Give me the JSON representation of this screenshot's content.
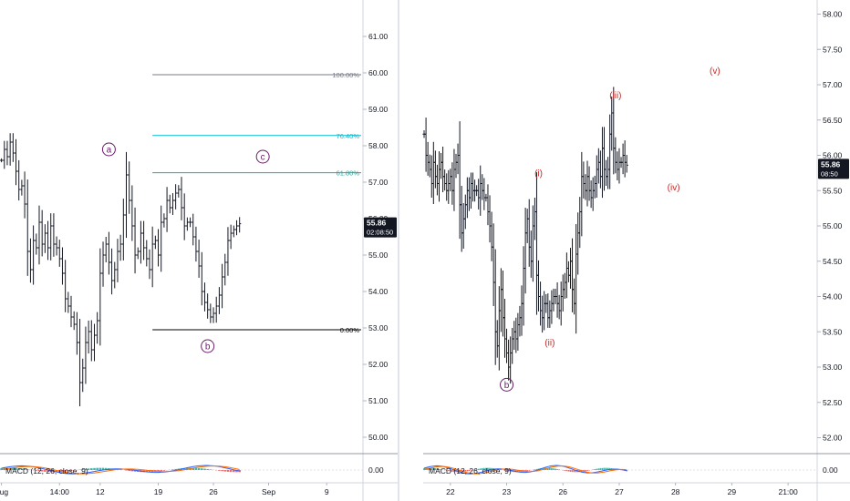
{
  "chart_data": [
    {
      "type": "ohlc",
      "ylim": [
        49.6,
        62.0
      ],
      "y_ticks": [
        50,
        51,
        52,
        53,
        54,
        55,
        56,
        57,
        58,
        59,
        60,
        61
      ],
      "y_tick_labels": [
        "50.00",
        "51.00",
        "52.00",
        "53.00",
        "54.00",
        "55.00",
        "56.00",
        "57.00",
        "58.00",
        "59.00",
        "60.00",
        "61.00"
      ],
      "x_ticks": [
        {
          "label": "Aug",
          "bar": 0
        },
        {
          "label": "14:00",
          "bar": 20
        },
        {
          "label": "12",
          "bar": 34
        },
        {
          "label": "19",
          "bar": 54
        },
        {
          "label": "26",
          "bar": 73
        },
        {
          "label": "Sep",
          "bar": 92
        },
        {
          "label": "9",
          "bar": 112
        }
      ],
      "bar_count": 125,
      "closes": [
        57.6,
        57.9,
        57.7,
        58.1,
        57.8,
        57.3,
        56.8,
        56.9,
        56.4,
        55.1,
        54.6,
        55.4,
        55.2,
        55.9,
        55.3,
        55.6,
        55.2,
        55.8,
        55.3,
        55.2,
        54.9,
        54.5,
        53.8,
        53.6,
        53.3,
        53.1,
        52.6,
        51.5,
        51.9,
        52.6,
        52.9,
        52.4,
        52.8,
        53.2,
        54.5,
        55.0,
        55.3,
        54.8,
        54.3,
        54.6,
        55.1,
        55.3,
        56.1,
        57.2,
        56.5,
        55.8,
        55.0,
        55.1,
        55.6,
        55.2,
        54.9,
        54.6,
        55.3,
        55.4,
        55.0,
        55.9,
        56.0,
        56.5,
        56.3,
        56.5,
        56.7,
        56.8,
        56.3,
        55.8,
        55.9,
        55.9,
        55.5,
        55.1,
        54.7,
        54.0,
        53.7,
        53.5,
        53.3,
        53.4,
        53.6,
        53.9,
        54.4,
        54.8,
        55.4,
        55.6,
        55.7,
        55.8,
        55.86
      ],
      "last_bar": 82,
      "last_price": "55.86",
      "countdown": "02:08:50",
      "fib_levels": [
        {
          "label": "100.00%",
          "value": 59.95,
          "color": "#787b86"
        },
        {
          "label": "76.40%",
          "value": 58.28,
          "color": "#00bcd4"
        },
        {
          "label": "61.80%",
          "value": 57.26,
          "color": "#26a69a"
        },
        {
          "label": "0.00%",
          "value": 52.95,
          "color": "#000000"
        }
      ],
      "fib_range_bars": [
        52,
        125
      ],
      "wave_labels": [
        {
          "text": "a",
          "bar": 37,
          "y": 57.9,
          "color": "#6a1b6a",
          "circled": true
        },
        {
          "text": "c",
          "bar": 90,
          "y": 57.7,
          "color": "#6a1b6a",
          "circled": true
        },
        {
          "text": "b",
          "bar": 71,
          "y": 52.5,
          "color": "#6a1b6a",
          "circled": true
        }
      ],
      "indicator": {
        "name": "MACD (12, 26, close, 9)",
        "zero_label": "0.00"
      }
    },
    {
      "type": "ohlc",
      "ylim": [
        51.8,
        58.2
      ],
      "y_ticks": [
        52.0,
        52.5,
        53.0,
        53.5,
        54.0,
        54.5,
        55.0,
        55.5,
        56.0,
        56.5,
        57.0,
        57.5,
        58.0
      ],
      "y_tick_labels": [
        "52.00",
        "52.50",
        "53.00",
        "53.50",
        "54.00",
        "54.50",
        "55.00",
        "55.50",
        "56.00",
        "56.50",
        "57.00",
        "57.50",
        "58.00"
      ],
      "x_ticks": [
        {
          "label": "22",
          "bar": 14
        },
        {
          "label": "23",
          "bar": 44
        },
        {
          "label": "26",
          "bar": 74
        },
        {
          "label": "27",
          "bar": 104
        },
        {
          "label": "28",
          "bar": 134
        },
        {
          "label": "29",
          "bar": 164
        },
        {
          "label": "21:00",
          "bar": 194
        }
      ],
      "bar_count": 210,
      "closes": [
        56.3,
        56.0,
        55.9,
        55.8,
        55.6,
        55.9,
        55.7,
        55.6,
        55.8,
        55.9,
        55.7,
        55.6,
        55.5,
        55.6,
        55.7,
        55.5,
        55.8,
        55.9,
        56.0,
        55.3,
        54.9,
        55.1,
        55.3,
        55.5,
        55.4,
        55.6,
        55.5,
        55.5,
        55.5,
        55.4,
        55.6,
        55.5,
        55.4,
        55.4,
        55.2,
        55.0,
        54.7,
        54.2,
        53.5,
        53.3,
        53.8,
        54.1,
        53.7,
        53.4,
        53.2,
        53.0,
        53.2,
        53.4,
        53.5,
        53.4,
        53.6,
        53.7,
        53.9,
        54.4,
        54.9,
        55.1,
        54.7,
        54.5,
        55.0,
        55.2,
        54.3,
        54.0,
        53.8,
        53.7,
        53.9,
        53.9,
        53.7,
        53.8,
        53.9,
        54.0,
        54.0,
        53.9,
        53.8,
        54.0,
        54.1,
        54.2,
        54.4,
        54.3,
        54.5,
        54.1,
        53.9,
        54.6,
        54.9,
        55.2,
        55.7,
        55.6,
        55.5,
        55.7,
        55.5,
        55.4,
        55.5,
        55.6,
        55.8,
        55.9,
        55.7,
        56.1,
        55.8,
        55.7,
        55.8,
        56.3,
        56.6,
        56.1,
        55.9,
        55.8,
        55.9,
        55.9,
        56.0,
        55.9,
        55.86
      ],
      "last_bar": 108,
      "last_price": "55.86",
      "countdown": "08:50",
      "wave_labels": [
        {
          "text": "b",
          "bar": 44,
          "y": 52.75,
          "color": "#6a1b6a",
          "circled": true
        },
        {
          "text": "(i)",
          "bar": 61,
          "y": 55.75,
          "color": "#c62828",
          "circled": false
        },
        {
          "text": "(ii)",
          "bar": 67,
          "y": 53.35,
          "color": "#c62828",
          "circled": false
        },
        {
          "text": "(iii)",
          "bar": 102,
          "y": 56.85,
          "color": "#c62828",
          "circled": false
        },
        {
          "text": "(iv)",
          "bar": 133,
          "y": 55.55,
          "color": "#c62828",
          "circled": false
        },
        {
          "text": "(v)",
          "bar": 155,
          "y": 57.2,
          "color": "#c62828",
          "circled": false
        }
      ],
      "indicator": {
        "name": "MACD (12, 26, close, 9)",
        "zero_label": "0.00"
      }
    }
  ]
}
